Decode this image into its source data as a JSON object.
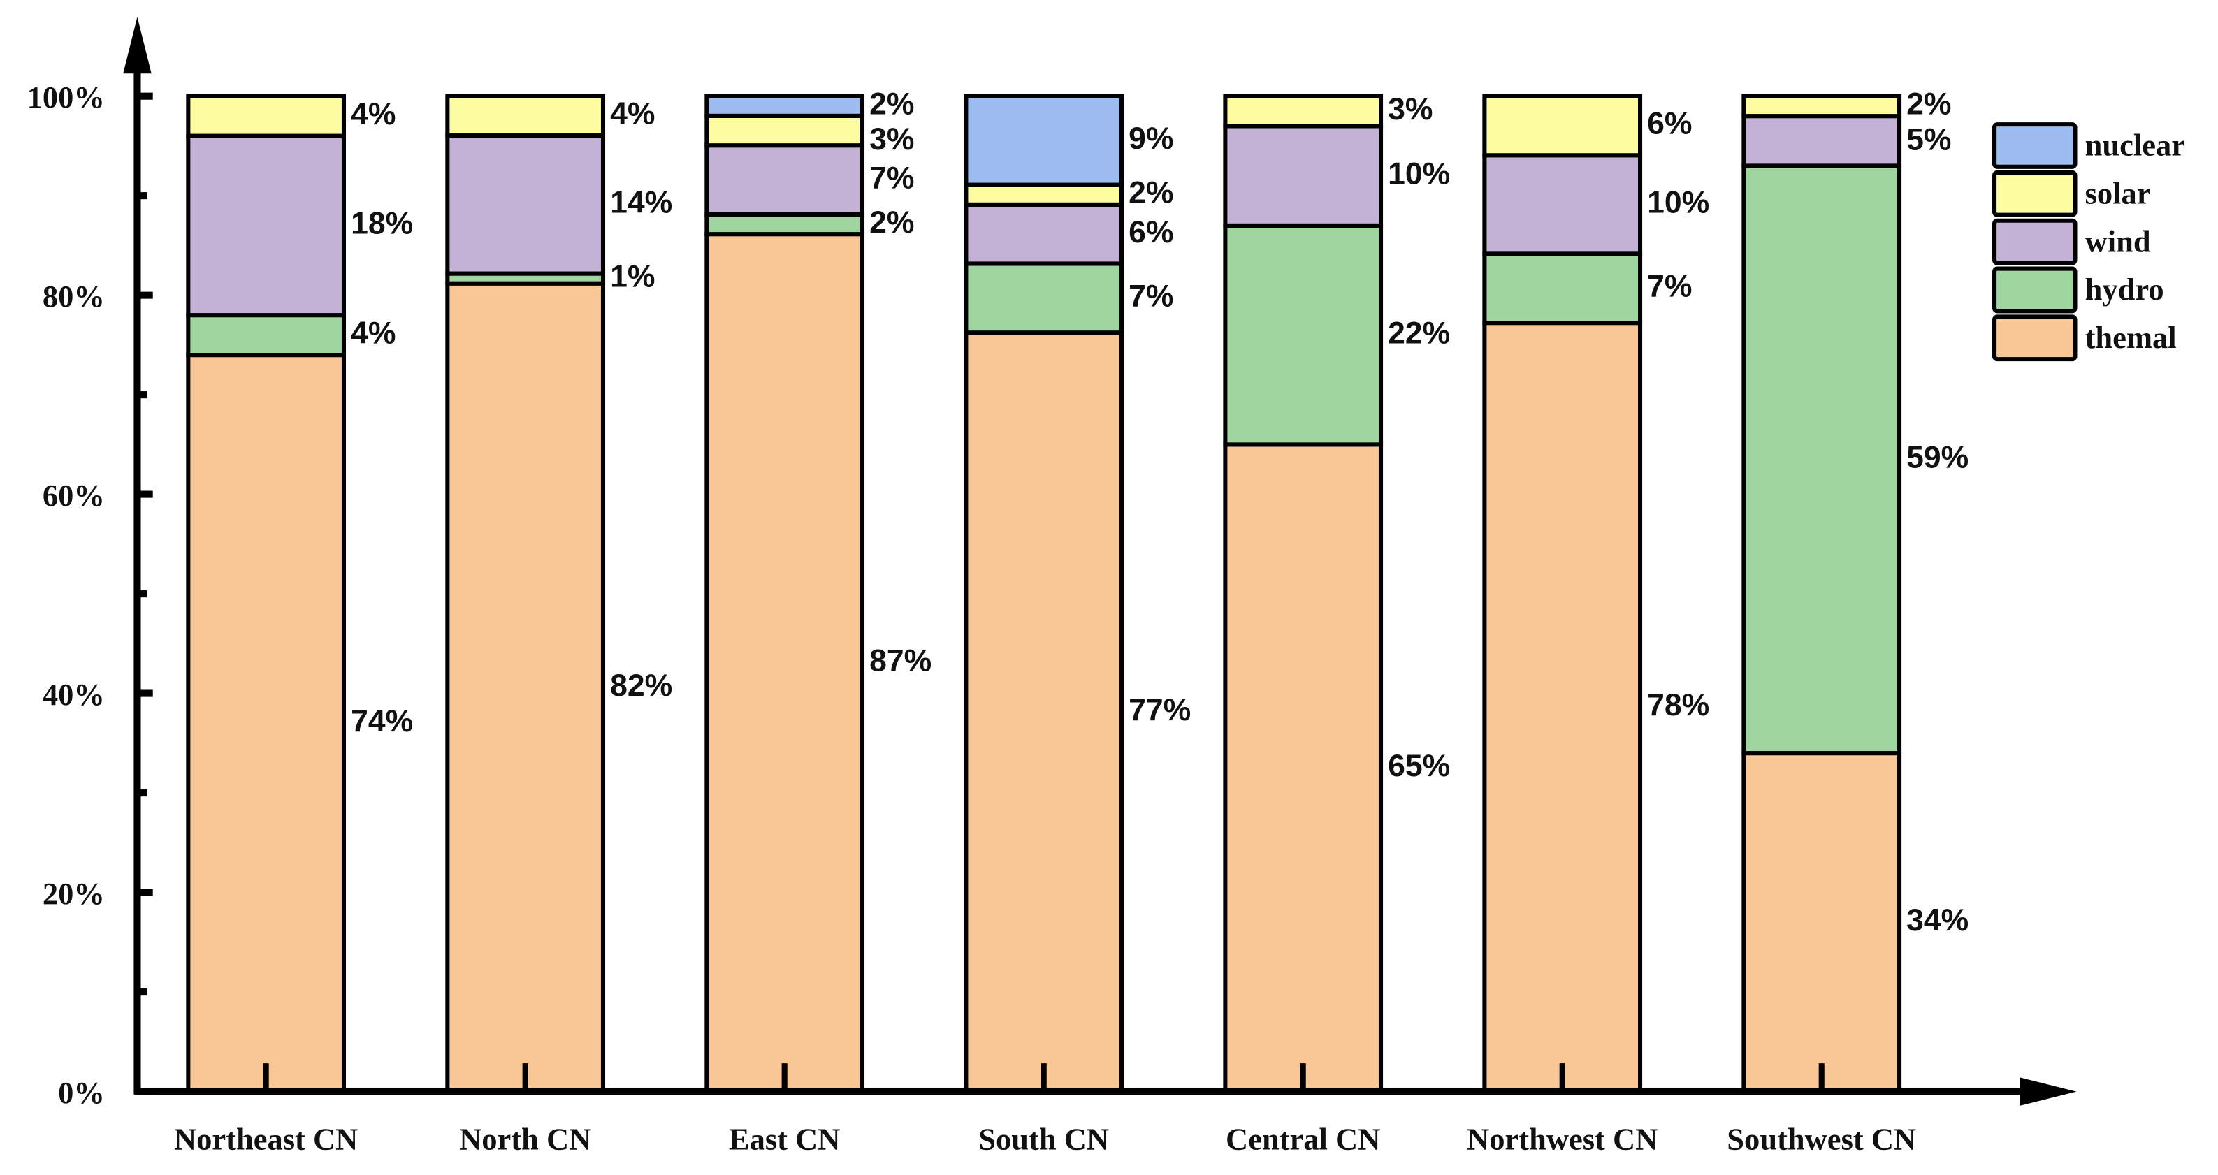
{
  "chart_data": {
    "type": "bar",
    "stacked": true,
    "title": "",
    "xlabel": "",
    "ylabel": "",
    "ylim": [
      0,
      100
    ],
    "yticks": [
      "0%",
      "20%",
      "40%",
      "60%",
      "80%",
      "100%"
    ],
    "categories": [
      "Northeast CN",
      "North CN",
      "East CN",
      "South CN",
      "Central CN",
      "Northwest CN",
      "Southwest CN"
    ],
    "series": [
      {
        "name": "themal",
        "color": "#f9c795",
        "values": [
          74,
          82,
          87,
          77,
          65,
          78,
          34
        ]
      },
      {
        "name": "hydro",
        "color": "#9fd6a0",
        "values": [
          4,
          1,
          2,
          7,
          22,
          7,
          59
        ]
      },
      {
        "name": "wind",
        "color": "#c3b1d6",
        "values": [
          18,
          14,
          7,
          6,
          10,
          10,
          5
        ]
      },
      {
        "name": "solar",
        "color": "#fdfca0",
        "values": [
          4,
          4,
          3,
          2,
          3,
          6,
          2
        ]
      },
      {
        "name": "nuclear",
        "color": "#9dbcf0",
        "values": [
          0,
          0,
          2,
          9,
          0,
          0,
          0
        ]
      }
    ],
    "legend": {
      "placement": "top-right",
      "order": [
        "nuclear",
        "solar",
        "wind",
        "hydro",
        "themal"
      ]
    },
    "grid": false
  }
}
